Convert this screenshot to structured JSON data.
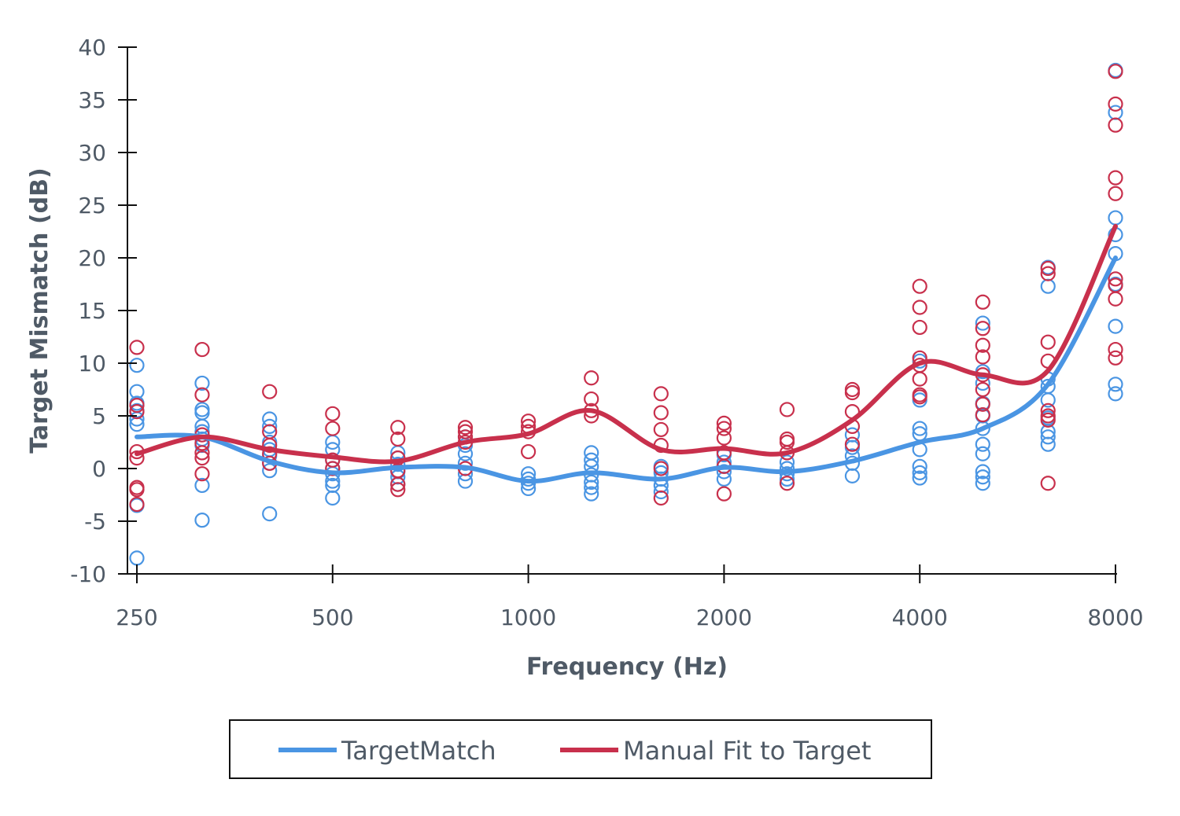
{
  "chart_data": {
    "type": "scatter",
    "title": "",
    "xlabel": "Frequency (Hz)",
    "ylabel": "Target Mismatch (dB)",
    "xscale": "log2",
    "xlim": [
      250,
      8000
    ],
    "ylim": [
      -10,
      40
    ],
    "x_ticks": [
      250,
      500,
      1000,
      2000,
      4000,
      8000
    ],
    "y_ticks": [
      -10,
      -5,
      0,
      5,
      10,
      15,
      20,
      25,
      30,
      35,
      40
    ],
    "grid": false,
    "legend_position": "bottom",
    "frequencies": [
      250,
      315,
      400,
      500,
      630,
      800,
      1000,
      1250,
      1600,
      2000,
      2500,
      3150,
      4000,
      5000,
      6300,
      8000
    ],
    "series": [
      {
        "name": "TargetMatch",
        "color": "#4a95e3",
        "mean_line": [
          3.0,
          3.0,
          0.7,
          -0.4,
          0.1,
          0.1,
          -1.2,
          -0.4,
          -1.0,
          0.1,
          -0.3,
          0.7,
          2.5,
          3.8,
          8.0,
          20.0
        ],
        "points": [
          [
            9.8,
            7.3,
            6.2,
            5.5,
            4.7,
            4.2,
            -3.5,
            -8.5
          ],
          [
            8.1,
            5.6,
            5.3,
            4.0,
            3.5,
            2.8,
            2.2,
            -1.6,
            -4.9
          ],
          [
            4.7,
            4.0,
            2.5,
            1.8,
            1.2,
            0.5,
            -0.2,
            -4.3
          ],
          [
            2.5,
            1.8,
            0.8,
            0.0,
            -0.5,
            -1.2,
            -1.6,
            -2.8
          ],
          [
            1.5,
            1.0,
            0.4,
            -0.3,
            -0.8,
            -1.5
          ],
          [
            3.0,
            2.2,
            1.4,
            0.5,
            -0.5,
            -1.2
          ],
          [
            -0.5,
            -1.0,
            -1.4,
            -1.9
          ],
          [
            1.5,
            0.8,
            0.2,
            -0.6,
            -1.3,
            -1.8,
            -2.4
          ],
          [
            0.2,
            -0.4,
            -1.0,
            -1.6,
            -2.2
          ],
          [
            1.3,
            0.6,
            0.2,
            -0.3,
            -1.0
          ],
          [
            0.6,
            0.0,
            -0.5,
            -1.0
          ],
          [
            3.2,
            2.0,
            1.2,
            0.5,
            -0.7
          ],
          [
            10.2,
            6.5,
            3.8,
            3.3,
            1.8,
            0.2,
            -0.4,
            -0.9
          ],
          [
            13.8,
            9.2,
            8.1,
            6.2,
            5.0,
            3.8,
            2.3,
            1.4,
            -0.3,
            -0.8,
            -1.4
          ],
          [
            19.1,
            17.3,
            8.5,
            7.8,
            6.5,
            4.8,
            3.5,
            3.0,
            2.3
          ],
          [
            37.8,
            33.8,
            23.8,
            22.2,
            20.4,
            17.5,
            13.5,
            8.0,
            7.1
          ]
        ]
      },
      {
        "name": "Manual Fit to Target",
        "color": "#c8304c",
        "mean_line": [
          1.4,
          3.0,
          1.8,
          1.1,
          0.7,
          2.5,
          3.3,
          5.5,
          1.8,
          1.9,
          1.5,
          4.6,
          10.0,
          8.9,
          9.3,
          23.0
        ],
        "points": [
          [
            11.5,
            6.0,
            5.4,
            1.6,
            1.0,
            -1.8,
            -2.0,
            -3.4
          ],
          [
            11.3,
            7.0,
            3.2,
            2.4,
            1.5,
            1.0,
            -0.5
          ],
          [
            7.3,
            3.5,
            2.2,
            1.4,
            0.5
          ],
          [
            5.2,
            3.8,
            0.8,
            0.0
          ],
          [
            3.9,
            2.8,
            1.0,
            -0.2,
            -1.5,
            -2.0
          ],
          [
            3.9,
            3.5,
            3.0,
            2.5,
            0.0
          ],
          [
            4.5,
            4.0,
            3.5,
            1.6
          ],
          [
            8.6,
            6.6,
            5.5,
            5.0
          ],
          [
            7.1,
            5.3,
            3.7,
            2.2,
            0.0,
            -2.8
          ],
          [
            4.3,
            3.8,
            2.9,
            1.5,
            0.2,
            -2.4
          ],
          [
            5.6,
            2.8,
            2.5,
            1.5,
            -1.4
          ],
          [
            7.5,
            7.2,
            5.4,
            4.0,
            2.3
          ],
          [
            17.3,
            15.3,
            13.4,
            10.5,
            9.8,
            8.5,
            7.0,
            6.8
          ],
          [
            15.8,
            13.3,
            11.7,
            10.6,
            8.9,
            7.5,
            6.1,
            5.1
          ],
          [
            19.0,
            18.5,
            12.0,
            10.2,
            5.5,
            5.0,
            4.6,
            -1.4
          ],
          [
            37.7,
            34.6,
            32.6,
            27.6,
            26.1,
            18.0,
            17.4,
            16.1,
            11.3,
            10.5
          ]
        ]
      }
    ]
  }
}
